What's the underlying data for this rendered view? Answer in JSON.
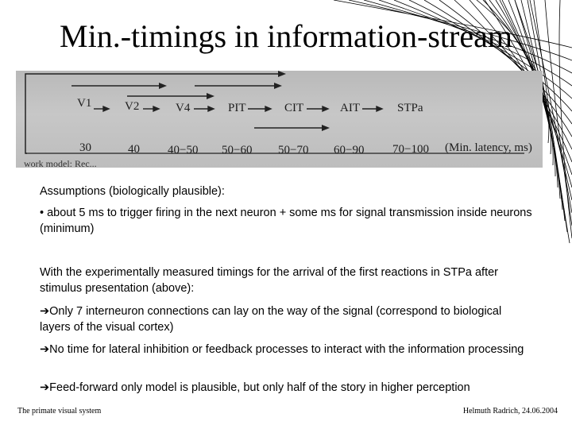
{
  "slide": {
    "title": "Min.-timings in information-stream"
  },
  "figure": {
    "areas": [
      "V1",
      "V2",
      "V4",
      "PIT",
      "CIT",
      "AIT",
      "STPa"
    ],
    "latencies": [
      "30",
      "40",
      "40−50",
      "50−60",
      "50−70",
      "60−90",
      "70−100"
    ],
    "latency_caption": "(Min. latency, ms)"
  },
  "content": {
    "assumptions_heading": "Assumptions (biologically plausible):",
    "assumption_1": "• about 5 ms to trigger firing in the next neuron + some ms for signal transmission inside neurons (minimum)",
    "intro": "With the experimentally measured timings for the arrival of the first reactions in STPa after stimulus presentation (above):",
    "point_1": "➔Only 7 interneuron connections can lay on the way of the signal (correspond to biological layers of the visual cortex)",
    "point_2": "➔No time for lateral inhibition or feedback processes to interact with the information processing",
    "point_3": "➔Feed-forward only model is plausible, but only half of the story in higher perception"
  },
  "footer": {
    "left": "The primate visual system",
    "right": "Helmuth Radrich, 24.06.2004"
  }
}
